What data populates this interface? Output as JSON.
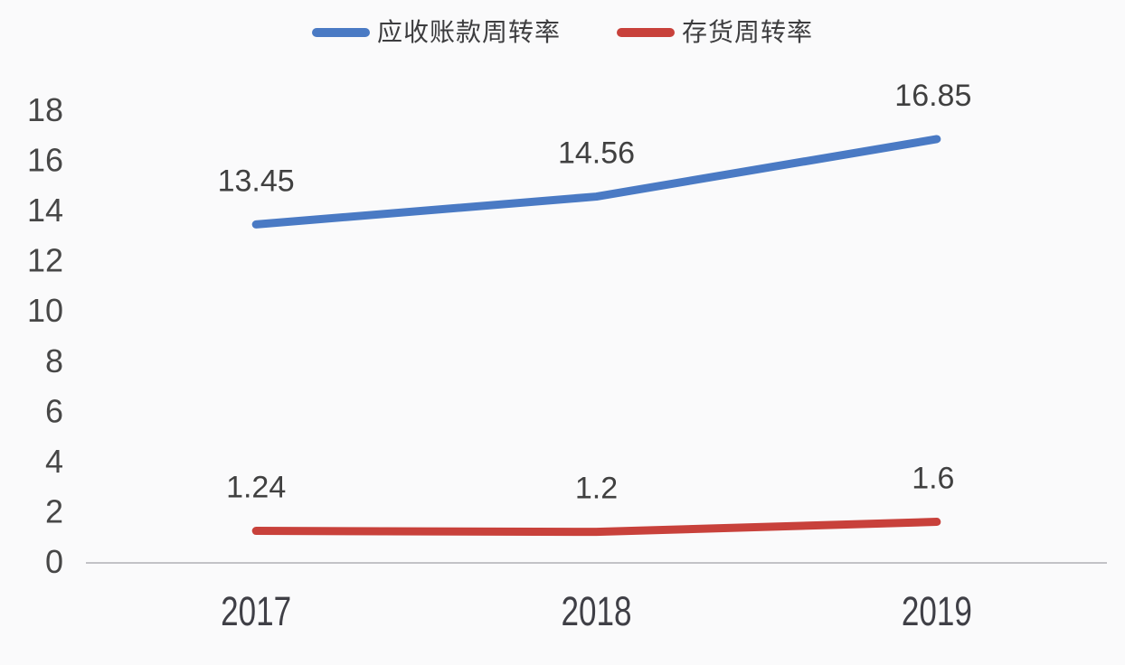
{
  "chart_data": {
    "type": "line",
    "title": "",
    "xlabel": "",
    "ylabel": "",
    "categories": [
      "2017",
      "2018",
      "2019"
    ],
    "series": [
      {
        "name": "应收账款周转率",
        "values": [
          13.45,
          14.56,
          16.85
        ],
        "point_labels": [
          "13.45",
          "14.56",
          "16.85"
        ],
        "color": "#4a7ac4"
      },
      {
        "name": "存货周转率",
        "values": [
          1.24,
          1.2,
          1.6
        ],
        "point_labels": [
          "1.24",
          "1.2",
          "1.6"
        ],
        "color": "#c8413b"
      }
    ],
    "ylim": [
      0,
      18
    ],
    "y_ticks": [
      "0",
      "2",
      "4",
      "6",
      "8",
      "10",
      "12",
      "14",
      "16",
      "18"
    ],
    "grid": false,
    "legend_position": "top"
  },
  "colors": {
    "background": "#fafafb",
    "axis_line": "#c2c2c6",
    "tick_text": "#474747",
    "data_label_text": "#404040",
    "x_label_text": "#3f3f46"
  }
}
